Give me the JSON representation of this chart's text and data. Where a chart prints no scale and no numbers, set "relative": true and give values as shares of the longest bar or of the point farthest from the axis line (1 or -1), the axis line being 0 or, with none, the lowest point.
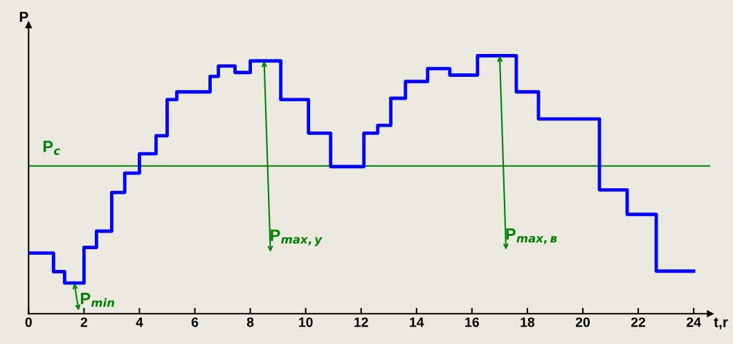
{
  "chart_data": {
    "type": "step",
    "relative": true,
    "ylabel": "P",
    "xlabel": "t,r",
    "xlim": [
      0,
      24.6
    ],
    "xticks": [
      0,
      2,
      4,
      6,
      8,
      10,
      12,
      14,
      16,
      18,
      20,
      22,
      24
    ],
    "grid": false,
    "legend": false,
    "marker": "none",
    "line_style": "solid",
    "series": [
      {
        "color": "#0000ff",
        "x": [
          0,
          0.9,
          1.3,
          2.0,
          2.45,
          3.0,
          3.47,
          4.0,
          4.6,
          5.0,
          5.35,
          6.55,
          6.85,
          7.45,
          8.0,
          9.1,
          10.1,
          10.9,
          12.1,
          12.6,
          13.07,
          13.6,
          14.4,
          15.2,
          16.2,
          17.6,
          18.4,
          20.6,
          21.6,
          22.65,
          24
        ],
        "values": [
          0.235,
          0.163,
          0.119,
          0.257,
          0.32,
          0.47,
          0.545,
          0.62,
          0.69,
          0.83,
          0.86,
          0.92,
          0.96,
          0.935,
          0.98,
          0.83,
          0.7,
          0.57,
          0.7,
          0.73,
          0.835,
          0.9,
          0.95,
          0.925,
          1.0,
          0.86,
          0.755,
          0.48,
          0.385,
          0.165,
          0.165
        ]
      }
    ],
    "ref_lines": [
      {
        "axis": "y",
        "value": 0.573,
        "label": "P$_{c}$",
        "color": "#008000"
      }
    ],
    "annotations": [
      {
        "text": "P$_{min}$",
        "x": 1.65,
        "y": 0.119
      },
      {
        "text": "P$_{max,y}$",
        "x": 8.5,
        "y": 0.98
      },
      {
        "text": "P$_{max,в}$",
        "x": 17.0,
        "y": 1.0
      }
    ]
  }
}
